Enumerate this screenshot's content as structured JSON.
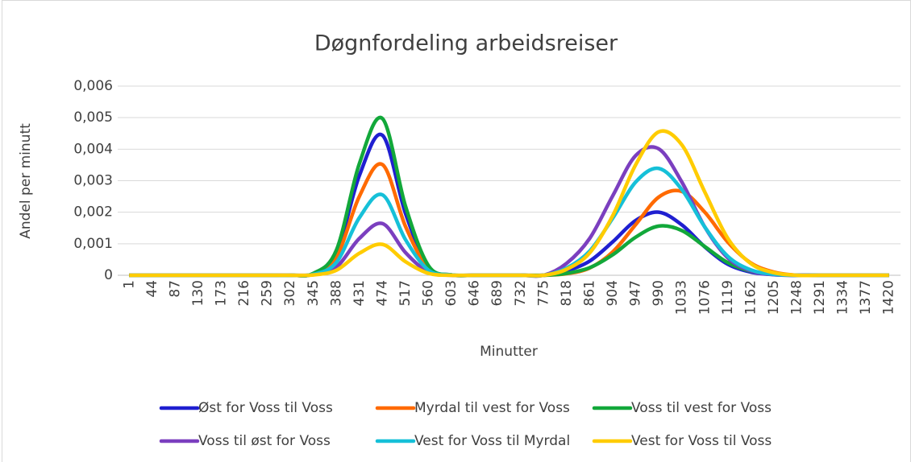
{
  "chart_data": {
    "type": "line",
    "title": "Døgnfordeling arbeidsreiser",
    "x_label": "Minutter",
    "y_label": "Andel per minutt",
    "categories": [
      "1",
      "44",
      "87",
      "130",
      "173",
      "216",
      "259",
      "302",
      "345",
      "388",
      "431",
      "474",
      "517",
      "560",
      "603",
      "646",
      "689",
      "732",
      "775",
      "818",
      "861",
      "904",
      "947",
      "990",
      "1033",
      "1076",
      "1119",
      "1162",
      "1205",
      "1248",
      "1291",
      "1334",
      "1377",
      "1420"
    ],
    "ylim": [
      0,
      0.006
    ],
    "yticks": [
      0,
      {
        "value": 0.001,
        "label": "0,001"
      },
      {
        "value": 0.002,
        "label": "0,002"
      },
      {
        "value": 0.003,
        "label": "0,003"
      },
      {
        "value": 0.004,
        "label": "0,004"
      },
      {
        "value": 0.005,
        "label": "0,005"
      },
      {
        "value": 0.006,
        "label": "0,006"
      }
    ],
    "grid": true,
    "legend": "bottom",
    "series": [
      {
        "name": "Øst for Voss til Voss",
        "color": "#1f1fd0",
        "values": [
          0,
          0,
          0,
          0,
          0,
          0,
          0,
          0,
          5e-05,
          0.00071,
          0.00317,
          0.00444,
          0.00196,
          0.00027,
          1e-05,
          0,
          0,
          0,
          0,
          0.00014,
          0.00045,
          0.00106,
          0.00174,
          0.002,
          0.0016,
          0.0009,
          0.00035,
          0.0001,
          2e-05,
          0,
          0,
          0,
          0,
          0
        ]
      },
      {
        "name": "Myrdal til vest for Voss",
        "color": "#ff6a00",
        "values": [
          0,
          0,
          0,
          0,
          0,
          0,
          0,
          0,
          4e-05,
          0.00057,
          0.00251,
          0.00351,
          0.00155,
          0.00021,
          1e-05,
          0,
          0,
          0,
          0,
          5e-05,
          0.00023,
          0.00074,
          0.00161,
          0.00248,
          0.00266,
          0.002,
          0.00105,
          0.00039,
          0.0001,
          0,
          0,
          0,
          0,
          0
        ]
      },
      {
        "name": "Voss til vest for Voss",
        "color": "#12a83a",
        "values": [
          0,
          0,
          0,
          0,
          0,
          0,
          0,
          0,
          6e-05,
          0.0008,
          0.00355,
          0.00497,
          0.00219,
          0.0003,
          1e-05,
          0,
          0,
          0,
          0,
          6e-05,
          0.00024,
          0.00065,
          0.00121,
          0.00156,
          0.00142,
          0.00091,
          0.0004,
          0.00013,
          3e-05,
          0,
          0,
          0,
          0,
          0
        ]
      },
      {
        "name": "Voss til øst for Voss",
        "color": "#7b3fbf",
        "values": [
          0,
          0,
          0,
          0,
          0,
          0,
          0,
          0,
          2e-05,
          0.00026,
          0.00117,
          0.00164,
          0.00072,
          0.0001,
          0,
          0,
          0,
          0,
          0,
          0.00038,
          0.00117,
          0.00252,
          0.0038,
          0.00401,
          0.00296,
          0.00153,
          0.00055,
          0.00014,
          2e-05,
          0,
          0,
          0,
          0,
          0
        ]
      },
      {
        "name": "Vest for Voss til Myrdal",
        "color": "#16c0d8",
        "values": [
          0,
          0,
          0,
          0,
          0,
          0,
          0,
          0,
          3e-05,
          0.00041,
          0.00183,
          0.00255,
          0.00113,
          0.00016,
          1e-05,
          0,
          0,
          0,
          0,
          0.00023,
          0.00077,
          0.00181,
          0.00296,
          0.00339,
          0.00272,
          0.00153,
          0.0006,
          0.00017,
          3e-05,
          0,
          0,
          0,
          0,
          0
        ]
      },
      {
        "name": "Vest for Voss til Voss",
        "color": "#ffcc00",
        "values": [
          0,
          0,
          0,
          0,
          0,
          0,
          0,
          0,
          1e-05,
          0.00016,
          0.0007,
          0.00098,
          0.00043,
          6e-05,
          0,
          0,
          0,
          0,
          0,
          0.00019,
          0.00071,
          0.00189,
          0.00351,
          0.00455,
          0.00414,
          0.00264,
          0.00117,
          0.00037,
          8e-05,
          0,
          0,
          0,
          0,
          0
        ]
      }
    ]
  }
}
